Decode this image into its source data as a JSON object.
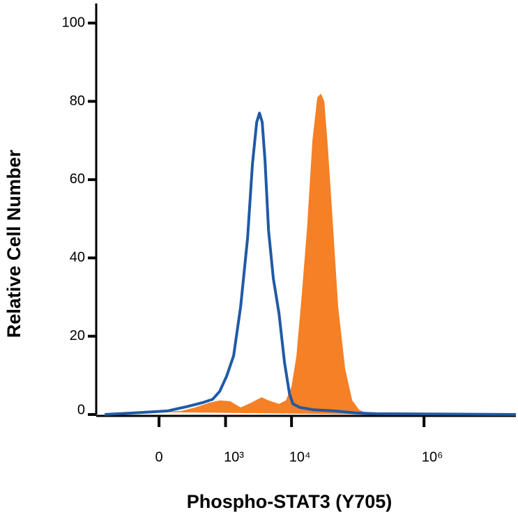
{
  "chart_data": {
    "type": "line",
    "x_label": "Phospho-STAT3 (Y705)",
    "y_label": "Relative Cell Number",
    "xscale": "asinh",
    "xlim": [
      -834,
      24400000
    ],
    "xticks": [
      0,
      {
        "value": 1000,
        "label": "10³"
      },
      {
        "value": 10000,
        "label": "10⁴"
      },
      {
        "value": 1000000,
        "label": "10⁶"
      }
    ],
    "ylim": [
      0,
      105
    ],
    "yticks": [
      0,
      20,
      40,
      60,
      80,
      100
    ],
    "series": [
      {
        "type": "area",
        "color": "#f58025",
        "x": [
          -249,
          10,
          171,
          324,
          554,
          812,
          1174,
          1700,
          2448,
          3526,
          4500,
          6470,
          8220,
          10000,
          11860,
          14040,
          17060,
          20680,
          24460,
          27700,
          31260,
          35300,
          42800,
          50600,
          64600,
          82400,
          105000,
          133800,
          192400
        ],
        "values": [
          0.7,
          0.7,
          0.9,
          1.8,
          3,
          3.6,
          3.4,
          1.8,
          3,
          4.4,
          3.6,
          2.7,
          3.6,
          7.1,
          15,
          29,
          47,
          70,
          81,
          82,
          80,
          68.5,
          47,
          27.6,
          11.6,
          3.6,
          1.2,
          0.4,
          0
        ]
      },
      {
        "type": "line",
        "color": "#1f5aa6",
        "x": [
          -646,
          -146,
          59,
          241,
          427,
          630,
          812,
          1040,
          1330,
          1700,
          2168,
          2570,
          2976,
          3280,
          3610,
          3980,
          4500,
          5320,
          6470,
          7840,
          9300,
          10500,
          13380,
          21720,
          44980,
          93000,
          192400,
          24400000
        ],
        "values": [
          0,
          0.5,
          0.9,
          2.1,
          3,
          3.9,
          5.9,
          9.8,
          15,
          27.6,
          45,
          64,
          74.7,
          77,
          74.7,
          65,
          47,
          34.7,
          25.8,
          13.3,
          5.3,
          2.7,
          1.8,
          1.2,
          0.9,
          0.4,
          0.2,
          0
        ]
      }
    ]
  }
}
